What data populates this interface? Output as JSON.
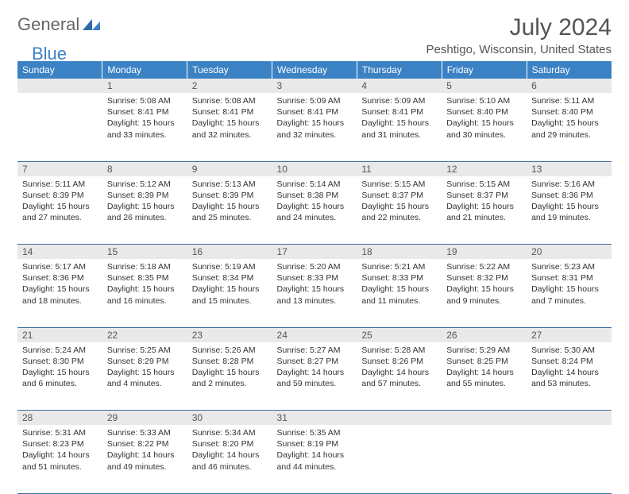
{
  "logo": {
    "word1": "General",
    "word2": "Blue"
  },
  "title": "July 2024",
  "location": "Peshtigo, Wisconsin, United States",
  "colors": {
    "header_bg": "#3b82c4",
    "header_text": "#ffffff",
    "daynum_bg": "#e9e9e9",
    "daynum_text": "#555555",
    "cell_text": "#333333",
    "rule": "#3b6ea0",
    "logo_gray": "#666666",
    "logo_blue": "#3b82c4"
  },
  "day_names": [
    "Sunday",
    "Monday",
    "Tuesday",
    "Wednesday",
    "Thursday",
    "Friday",
    "Saturday"
  ],
  "weeks": [
    [
      {
        "num": "",
        "sunrise": "",
        "sunset": "",
        "daylight": ""
      },
      {
        "num": "1",
        "sunrise": "Sunrise: 5:08 AM",
        "sunset": "Sunset: 8:41 PM",
        "daylight": "Daylight: 15 hours and 33 minutes."
      },
      {
        "num": "2",
        "sunrise": "Sunrise: 5:08 AM",
        "sunset": "Sunset: 8:41 PM",
        "daylight": "Daylight: 15 hours and 32 minutes."
      },
      {
        "num": "3",
        "sunrise": "Sunrise: 5:09 AM",
        "sunset": "Sunset: 8:41 PM",
        "daylight": "Daylight: 15 hours and 32 minutes."
      },
      {
        "num": "4",
        "sunrise": "Sunrise: 5:09 AM",
        "sunset": "Sunset: 8:41 PM",
        "daylight": "Daylight: 15 hours and 31 minutes."
      },
      {
        "num": "5",
        "sunrise": "Sunrise: 5:10 AM",
        "sunset": "Sunset: 8:40 PM",
        "daylight": "Daylight: 15 hours and 30 minutes."
      },
      {
        "num": "6",
        "sunrise": "Sunrise: 5:11 AM",
        "sunset": "Sunset: 8:40 PM",
        "daylight": "Daylight: 15 hours and 29 minutes."
      }
    ],
    [
      {
        "num": "7",
        "sunrise": "Sunrise: 5:11 AM",
        "sunset": "Sunset: 8:39 PM",
        "daylight": "Daylight: 15 hours and 27 minutes."
      },
      {
        "num": "8",
        "sunrise": "Sunrise: 5:12 AM",
        "sunset": "Sunset: 8:39 PM",
        "daylight": "Daylight: 15 hours and 26 minutes."
      },
      {
        "num": "9",
        "sunrise": "Sunrise: 5:13 AM",
        "sunset": "Sunset: 8:39 PM",
        "daylight": "Daylight: 15 hours and 25 minutes."
      },
      {
        "num": "10",
        "sunrise": "Sunrise: 5:14 AM",
        "sunset": "Sunset: 8:38 PM",
        "daylight": "Daylight: 15 hours and 24 minutes."
      },
      {
        "num": "11",
        "sunrise": "Sunrise: 5:15 AM",
        "sunset": "Sunset: 8:37 PM",
        "daylight": "Daylight: 15 hours and 22 minutes."
      },
      {
        "num": "12",
        "sunrise": "Sunrise: 5:15 AM",
        "sunset": "Sunset: 8:37 PM",
        "daylight": "Daylight: 15 hours and 21 minutes."
      },
      {
        "num": "13",
        "sunrise": "Sunrise: 5:16 AM",
        "sunset": "Sunset: 8:36 PM",
        "daylight": "Daylight: 15 hours and 19 minutes."
      }
    ],
    [
      {
        "num": "14",
        "sunrise": "Sunrise: 5:17 AM",
        "sunset": "Sunset: 8:36 PM",
        "daylight": "Daylight: 15 hours and 18 minutes."
      },
      {
        "num": "15",
        "sunrise": "Sunrise: 5:18 AM",
        "sunset": "Sunset: 8:35 PM",
        "daylight": "Daylight: 15 hours and 16 minutes."
      },
      {
        "num": "16",
        "sunrise": "Sunrise: 5:19 AM",
        "sunset": "Sunset: 8:34 PM",
        "daylight": "Daylight: 15 hours and 15 minutes."
      },
      {
        "num": "17",
        "sunrise": "Sunrise: 5:20 AM",
        "sunset": "Sunset: 8:33 PM",
        "daylight": "Daylight: 15 hours and 13 minutes."
      },
      {
        "num": "18",
        "sunrise": "Sunrise: 5:21 AM",
        "sunset": "Sunset: 8:33 PM",
        "daylight": "Daylight: 15 hours and 11 minutes."
      },
      {
        "num": "19",
        "sunrise": "Sunrise: 5:22 AM",
        "sunset": "Sunset: 8:32 PM",
        "daylight": "Daylight: 15 hours and 9 minutes."
      },
      {
        "num": "20",
        "sunrise": "Sunrise: 5:23 AM",
        "sunset": "Sunset: 8:31 PM",
        "daylight": "Daylight: 15 hours and 7 minutes."
      }
    ],
    [
      {
        "num": "21",
        "sunrise": "Sunrise: 5:24 AM",
        "sunset": "Sunset: 8:30 PM",
        "daylight": "Daylight: 15 hours and 6 minutes."
      },
      {
        "num": "22",
        "sunrise": "Sunrise: 5:25 AM",
        "sunset": "Sunset: 8:29 PM",
        "daylight": "Daylight: 15 hours and 4 minutes."
      },
      {
        "num": "23",
        "sunrise": "Sunrise: 5:26 AM",
        "sunset": "Sunset: 8:28 PM",
        "daylight": "Daylight: 15 hours and 2 minutes."
      },
      {
        "num": "24",
        "sunrise": "Sunrise: 5:27 AM",
        "sunset": "Sunset: 8:27 PM",
        "daylight": "Daylight: 14 hours and 59 minutes."
      },
      {
        "num": "25",
        "sunrise": "Sunrise: 5:28 AM",
        "sunset": "Sunset: 8:26 PM",
        "daylight": "Daylight: 14 hours and 57 minutes."
      },
      {
        "num": "26",
        "sunrise": "Sunrise: 5:29 AM",
        "sunset": "Sunset: 8:25 PM",
        "daylight": "Daylight: 14 hours and 55 minutes."
      },
      {
        "num": "27",
        "sunrise": "Sunrise: 5:30 AM",
        "sunset": "Sunset: 8:24 PM",
        "daylight": "Daylight: 14 hours and 53 minutes."
      }
    ],
    [
      {
        "num": "28",
        "sunrise": "Sunrise: 5:31 AM",
        "sunset": "Sunset: 8:23 PM",
        "daylight": "Daylight: 14 hours and 51 minutes."
      },
      {
        "num": "29",
        "sunrise": "Sunrise: 5:33 AM",
        "sunset": "Sunset: 8:22 PM",
        "daylight": "Daylight: 14 hours and 49 minutes."
      },
      {
        "num": "30",
        "sunrise": "Sunrise: 5:34 AM",
        "sunset": "Sunset: 8:20 PM",
        "daylight": "Daylight: 14 hours and 46 minutes."
      },
      {
        "num": "31",
        "sunrise": "Sunrise: 5:35 AM",
        "sunset": "Sunset: 8:19 PM",
        "daylight": "Daylight: 14 hours and 44 minutes."
      },
      {
        "num": "",
        "sunrise": "",
        "sunset": "",
        "daylight": ""
      },
      {
        "num": "",
        "sunrise": "",
        "sunset": "",
        "daylight": ""
      },
      {
        "num": "",
        "sunrise": "",
        "sunset": "",
        "daylight": ""
      }
    ]
  ]
}
